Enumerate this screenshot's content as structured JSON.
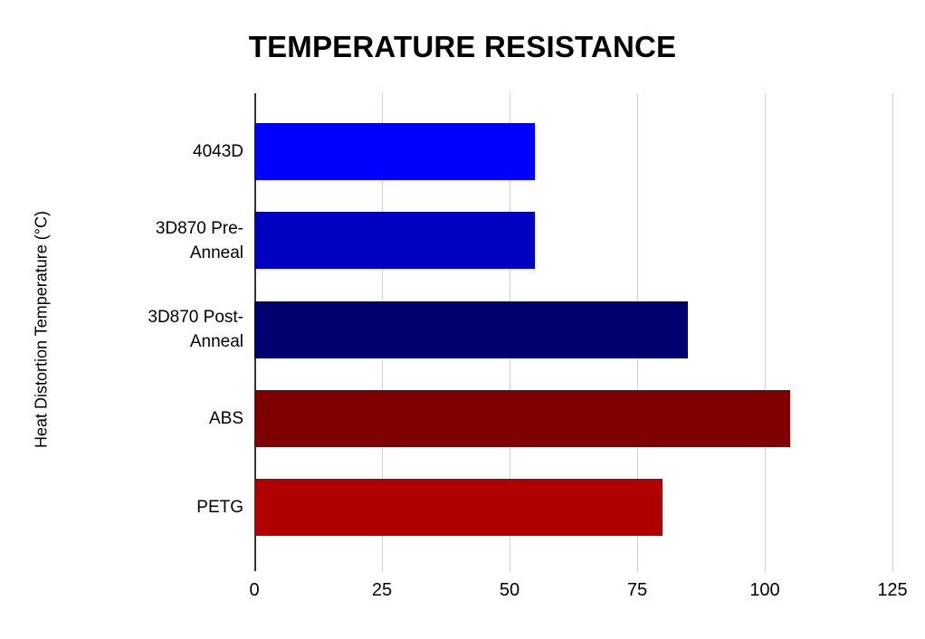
{
  "chart_data": {
    "type": "bar",
    "orientation": "horizontal",
    "title": "TEMPERATURE RESISTANCE",
    "xlabel": "",
    "ylabel": "Heat Distortion Temperature (°C)",
    "categories": [
      "4043D",
      "3D870 Pre-Anneal",
      "3D870 Post-Anneal",
      "ABS",
      "PETG"
    ],
    "category_lines": [
      [
        "4043D"
      ],
      [
        "3D870 Pre-",
        "Anneal"
      ],
      [
        "3D870 Post-",
        "Anneal"
      ],
      [
        "ABS"
      ],
      [
        "PETG"
      ]
    ],
    "values": [
      55,
      55,
      85,
      105,
      80
    ],
    "bar_colors": [
      "#0000FF",
      "#0000C0",
      "#000070",
      "#7F0000",
      "#B00000"
    ],
    "x_ticks": [
      "0",
      "25",
      "50",
      "75",
      "100",
      "125"
    ],
    "x_tick_values": [
      0,
      25,
      50,
      75,
      100,
      125
    ],
    "xlim": [
      0,
      125
    ],
    "grid": true,
    "legend": "none",
    "styles": {
      "gridline_color": "#CFCFCF",
      "axis_line_color": "#333333",
      "text_color": "#000000",
      "background_color": "#FFFFFF"
    }
  }
}
